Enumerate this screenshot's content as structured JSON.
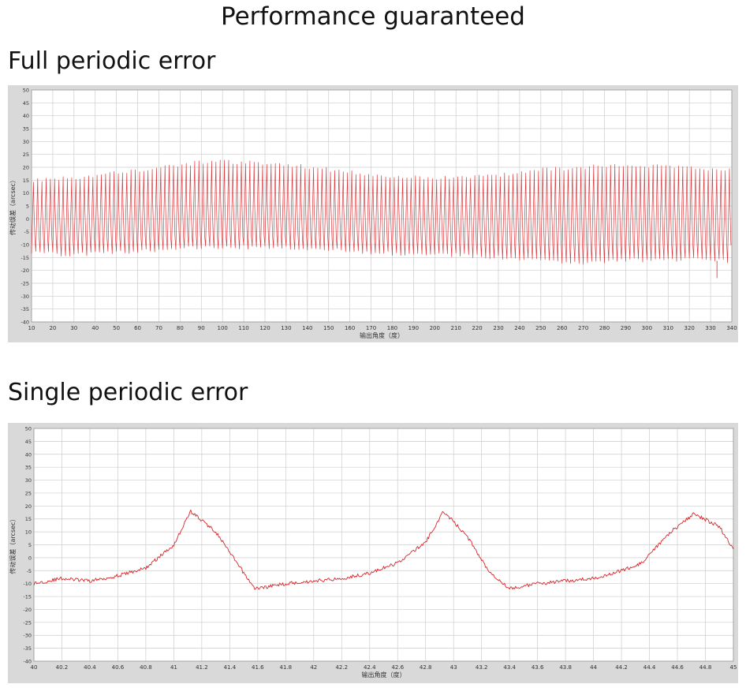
{
  "page": {
    "title": "Performance guaranteed"
  },
  "sections": {
    "full": {
      "heading": "Full periodic error"
    },
    "single": {
      "heading": "Single periodic error"
    }
  },
  "colors": {
    "signal": "#d7262a",
    "grid": "#cccccc",
    "plot_background": "#ffffff",
    "frame": "#d9d9d9"
  },
  "chart_data": [
    {
      "type": "line",
      "xlabel": "输出角度（度）",
      "ylabel": "传动误差（arcsec）",
      "xlim": [
        10,
        340
      ],
      "ylim": [
        -40,
        50
      ],
      "xticks": [
        10,
        20,
        30,
        40,
        50,
        60,
        70,
        80,
        90,
        100,
        110,
        120,
        130,
        140,
        150,
        160,
        170,
        180,
        190,
        200,
        210,
        220,
        230,
        240,
        250,
        260,
        270,
        280,
        290,
        300,
        310,
        320,
        330,
        340
      ],
      "yticks": [
        -40,
        -35,
        -30,
        -25,
        -20,
        -15,
        -10,
        -5,
        0,
        5,
        10,
        15,
        20,
        25,
        30,
        35,
        40,
        45,
        50
      ],
      "grid": true,
      "series": [
        {
          "x": [
            10,
            30,
            50,
            70,
            90,
            110,
            130,
            150,
            170,
            190,
            210,
            230,
            250,
            270,
            290,
            310,
            330,
            340
          ],
          "upper": [
            15,
            16,
            18,
            20,
            22,
            22,
            21,
            19,
            17,
            16,
            16,
            17,
            19,
            20,
            21,
            20,
            19,
            19
          ],
          "lower": [
            -13,
            -14,
            -13,
            -12,
            -11,
            -11,
            -11,
            -12,
            -13,
            -14,
            -14,
            -15,
            -16,
            -17,
            -16,
            -16,
            -16,
            -17
          ],
          "oscillation_period_deg": 2,
          "min_outlier": {
            "x": 333,
            "y": -23
          }
        }
      ]
    },
    {
      "type": "line",
      "xlabel": "输出角度（度）",
      "ylabel": "传动误差（arcsec）",
      "xlim": [
        40,
        45
      ],
      "ylim": [
        -40,
        50
      ],
      "xticks": [
        40,
        40.2,
        40.4,
        40.6,
        40.8,
        41,
        41.2,
        41.4,
        41.6,
        41.8,
        42,
        42.2,
        42.4,
        42.6,
        42.8,
        43,
        43.2,
        43.4,
        43.6,
        43.8,
        44,
        44.2,
        44.4,
        44.6,
        44.8,
        45
      ],
      "yticks": [
        -40,
        -35,
        -30,
        -25,
        -20,
        -15,
        -10,
        -5,
        0,
        5,
        10,
        15,
        20,
        25,
        30,
        35,
        40,
        45,
        50
      ],
      "grid": true,
      "series": [
        {
          "x": [
            40,
            40.2,
            40.4,
            40.6,
            40.8,
            41.0,
            41.12,
            41.3,
            41.45,
            41.58,
            41.8,
            42.0,
            42.2,
            42.4,
            42.6,
            42.8,
            42.93,
            43.1,
            43.25,
            43.4,
            43.6,
            43.8,
            44.0,
            44.2,
            44.35,
            44.55,
            44.72,
            44.9,
            45.0
          ],
          "y": [
            -10,
            -8,
            -9,
            -7,
            -4,
            5,
            18,
            10,
            -2,
            -12,
            -10,
            -9,
            -8,
            -6,
            -2,
            6,
            18,
            8,
            -5,
            -12,
            -10,
            -9,
            -8,
            -5,
            -2,
            10,
            17,
            12,
            3
          ]
        }
      ]
    }
  ]
}
